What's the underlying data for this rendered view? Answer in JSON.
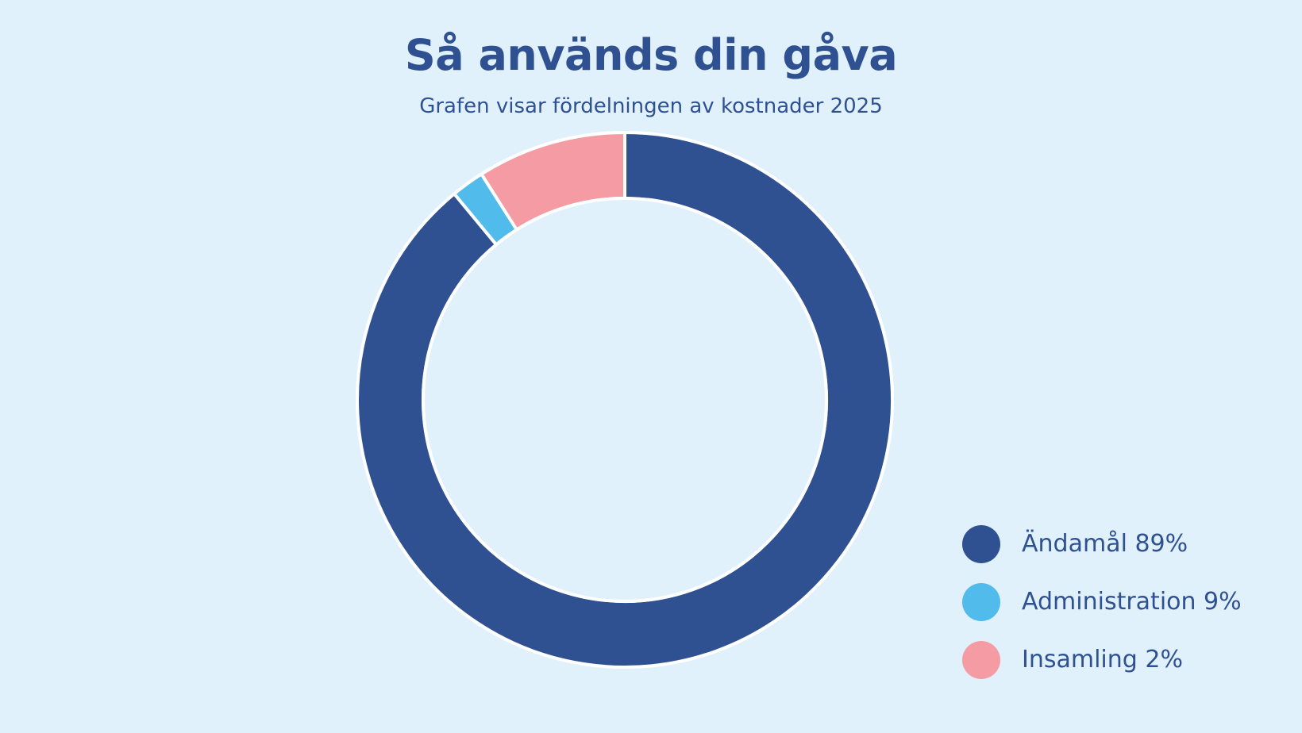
{
  "chart_data": {
    "type": "pie",
    "donut": true,
    "title": "Så används din gåva",
    "subtitle": "Grafen visar fördelningen av kostnader 2025",
    "slices": [
      {
        "label": "Ändamål 89%",
        "value": 89,
        "color": "#2f5192"
      },
      {
        "label": "Administration 9%",
        "value": 9,
        "color": "#51bbec"
      },
      {
        "label": "Insamling 2%",
        "value": 2,
        "color": "#f59ba3"
      }
    ],
    "drawn_order": [
      {
        "label": "Ändamål 89%",
        "value": 89,
        "color": "#2f5192"
      },
      {
        "label": "Insamling 2%",
        "value": 2,
        "color": "#51bbec"
      },
      {
        "label": "Administration 9%",
        "value": 9,
        "color": "#f59ba3"
      }
    ],
    "legend_position": "bottom-right"
  },
  "colors": {
    "background": "#e0f1fc",
    "text": "#2f5192",
    "separator": "#ffffff"
  }
}
